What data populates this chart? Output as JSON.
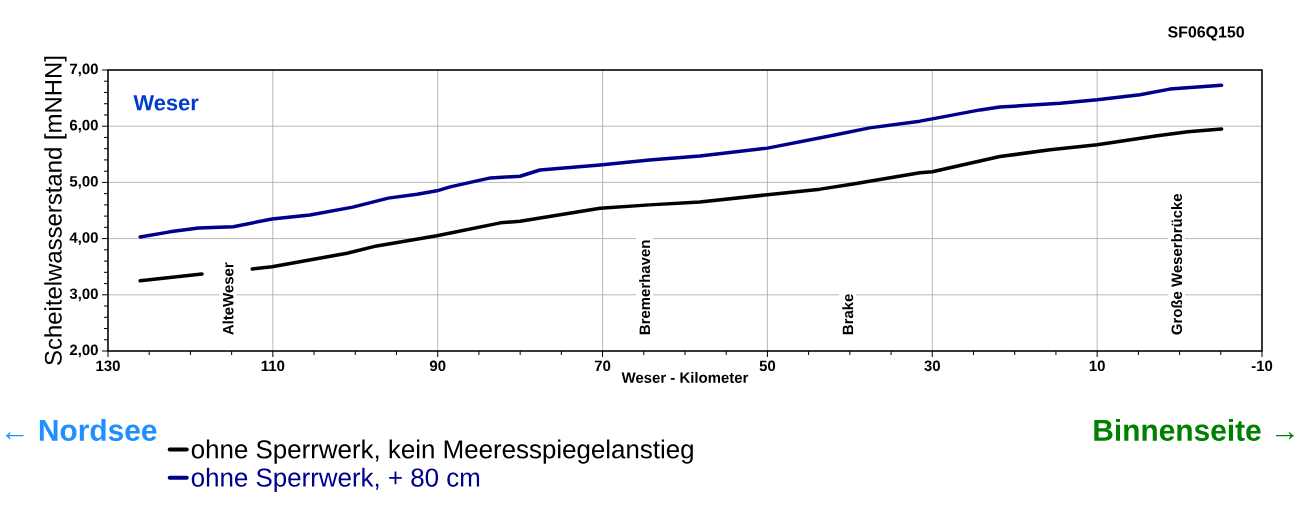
{
  "chart_data": {
    "type": "line",
    "title": "Weser",
    "subtitle": "SF06Q150",
    "xlabel": "Weser - Kilometer",
    "ylabel": "Scheitelwasserstand [mNHN]",
    "xlim": [
      130,
      -10
    ],
    "xticks": [
      130,
      110,
      90,
      70,
      50,
      30,
      10,
      -10
    ],
    "ylim": [
      2,
      7
    ],
    "yticks": [
      {
        "value": 2,
        "label": "2,00"
      },
      {
        "value": 3,
        "label": "3,00"
      },
      {
        "value": 4,
        "label": "4,00"
      },
      {
        "value": 5,
        "label": "5,00"
      },
      {
        "value": 6,
        "label": "6,00"
      },
      {
        "value": 7,
        "label": "7,00"
      }
    ],
    "grid": true,
    "legend": "bottom",
    "marker": "none",
    "line_style": "solid",
    "series": [
      {
        "name": "ohne Sperrwerk, kein Meeresspiegelanstieg",
        "color": "#000000",
        "x": [
          126.1,
          118.6,
          117.5,
          112.5,
          110.1,
          101,
          97.4,
          90.1,
          82.4,
          80,
          70.3,
          64.3,
          58.2,
          50,
          43.6,
          39.6,
          31.5,
          30,
          21.8,
          15.7,
          10,
          2.7,
          -1,
          -5.1
        ],
        "values": [
          3.25,
          3.37,
          null,
          3.46,
          3.5,
          3.74,
          3.87,
          4.05,
          4.28,
          4.31,
          4.54,
          4.6,
          4.65,
          4.78,
          4.88,
          4.97,
          5.17,
          5.19,
          5.46,
          5.58,
          5.67,
          5.83,
          5.9,
          5.95
        ]
      },
      {
        "name": "ohne Sperrwerk, + 80 cm",
        "color": "#00008b",
        "x": [
          126.1,
          122.5,
          119,
          114.8,
          110.1,
          105.5,
          100.3,
          96,
          92.5,
          90.1,
          88.5,
          83.6,
          80,
          77.6,
          70.3,
          64.3,
          58.2,
          50,
          42,
          37.6,
          31.5,
          30,
          24.2,
          21.8,
          14.5,
          10,
          4.8,
          1.2,
          -5.1
        ],
        "values": [
          4.03,
          4.12,
          4.19,
          4.21,
          4.35,
          4.42,
          4.56,
          4.72,
          4.79,
          4.85,
          4.92,
          5.08,
          5.11,
          5.22,
          5.31,
          5.4,
          5.47,
          5.61,
          5.84,
          5.97,
          6.09,
          6.13,
          6.29,
          6.34,
          6.41,
          6.47,
          6.56,
          6.66,
          6.73
        ]
      }
    ],
    "annotations": [
      "AlteWeser",
      "Bremerhaven",
      "Brake",
      "Große Weserbrücke",
      "← Nordsee",
      "Binnenseite →"
    ]
  }
}
